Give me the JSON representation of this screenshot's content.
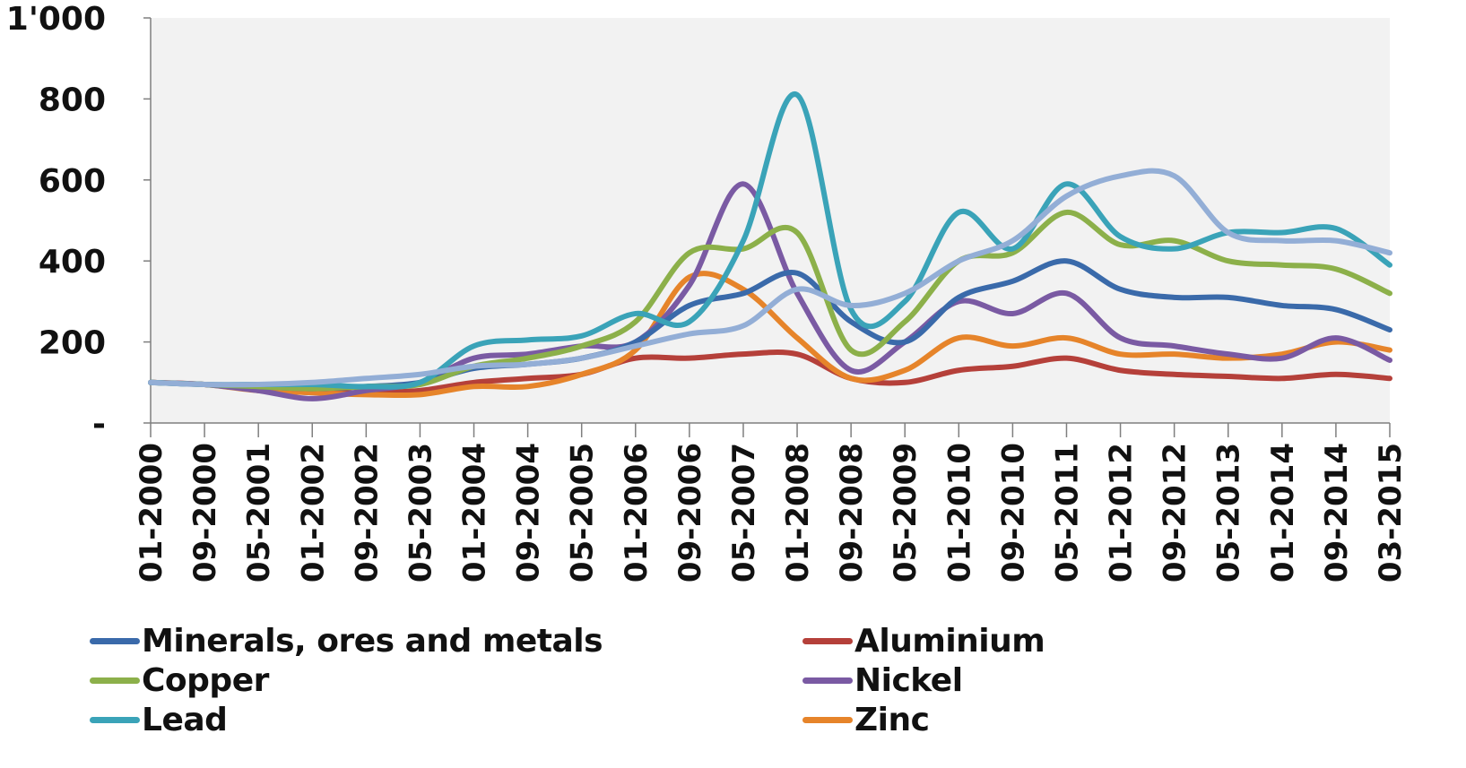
{
  "chart_data": {
    "type": "line",
    "title": "",
    "xlabel": "",
    "ylabel": "",
    "ylim": [
      0,
      1000
    ],
    "y_ticks": [
      {
        "value": 0,
        "label": "-"
      },
      {
        "value": 200,
        "label": "200"
      },
      {
        "value": 400,
        "label": "400"
      },
      {
        "value": 600,
        "label": "600"
      },
      {
        "value": 800,
        "label": "800"
      },
      {
        "value": 1000,
        "label": "1'000"
      }
    ],
    "x_tick_labels": [
      "01-2000",
      "09-2000",
      "05-2001",
      "01-2002",
      "09-2002",
      "05-2003",
      "01-2004",
      "09-2004",
      "05-2005",
      "01-2006",
      "09-2006",
      "05-2007",
      "01-2008",
      "09-2008",
      "05-2009",
      "01-2010",
      "09-2010",
      "05-2011",
      "01-2012",
      "09-2012",
      "05-2013",
      "01-2014",
      "09-2014",
      "03-2015"
    ],
    "x": [
      "01-2000",
      "09-2000",
      "05-2001",
      "01-2002",
      "09-2002",
      "05-2003",
      "01-2004",
      "09-2004",
      "05-2005",
      "01-2006",
      "09-2006",
      "05-2007",
      "01-2008",
      "09-2008",
      "05-2009",
      "01-2010",
      "09-2010",
      "05-2011",
      "01-2012",
      "09-2012",
      "05-2013",
      "01-2014",
      "09-2014",
      "03-2015"
    ],
    "grid": false,
    "legend_position": "bottom",
    "plot_background": "#f2f2f2",
    "series": [
      {
        "name": "Minerals, ores and metals",
        "color": "#3a6aaa",
        "values": [
          100,
          95,
          90,
          85,
          90,
          100,
          135,
          145,
          160,
          200,
          290,
          320,
          370,
          250,
          200,
          310,
          350,
          400,
          330,
          310,
          310,
          290,
          280,
          230
        ]
      },
      {
        "name": "Aluminium",
        "color": "#b5403a",
        "values": [
          100,
          95,
          85,
          75,
          75,
          80,
          100,
          110,
          120,
          160,
          160,
          170,
          170,
          110,
          100,
          130,
          140,
          160,
          130,
          120,
          115,
          110,
          120,
          110
        ]
      },
      {
        "name": "Copper",
        "color": "#8cb04a",
        "values": [
          100,
          95,
          90,
          85,
          90,
          95,
          140,
          160,
          190,
          250,
          420,
          430,
          470,
          180,
          250,
          400,
          420,
          520,
          440,
          450,
          400,
          390,
          380,
          320
        ]
      },
      {
        "name": "Nickel",
        "color": "#7a5aa3",
        "values": [
          100,
          95,
          80,
          60,
          80,
          100,
          160,
          170,
          190,
          200,
          340,
          590,
          320,
          130,
          200,
          300,
          270,
          320,
          210,
          190,
          170,
          160,
          210,
          155
        ]
      },
      {
        "name": "Lead",
        "color": "#3aa3b8",
        "values": [
          100,
          95,
          95,
          95,
          90,
          100,
          190,
          205,
          215,
          270,
          250,
          450,
          810,
          280,
          300,
          520,
          430,
          590,
          460,
          430,
          470,
          470,
          480,
          390
        ]
      },
      {
        "name": "Zinc",
        "color": "#e6842a",
        "values": [
          100,
          95,
          80,
          75,
          70,
          70,
          90,
          90,
          120,
          180,
          360,
          330,
          210,
          110,
          130,
          210,
          190,
          210,
          170,
          170,
          160,
          170,
          200,
          180
        ]
      },
      {
        "name": "",
        "color": "#93aed6",
        "values": [
          100,
          95,
          95,
          100,
          110,
          120,
          140,
          145,
          160,
          190,
          220,
          240,
          330,
          290,
          320,
          400,
          450,
          560,
          610,
          610,
          470,
          450,
          450,
          420
        ]
      }
    ]
  }
}
